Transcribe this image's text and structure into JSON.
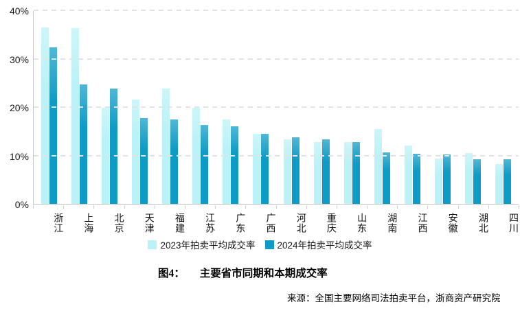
{
  "colors": {
    "series_2023": "#baf2f7",
    "series_2024": "#0e9bc5",
    "grid": "#e3e3e3",
    "axis": "#c9c9c9",
    "text": "#1a1a1a"
  },
  "chart_data": {
    "type": "bar",
    "categories": [
      "浙江",
      "上海",
      "北京",
      "天津",
      "福建",
      "江苏",
      "广东",
      "广西",
      "河北",
      "重庆",
      "山东",
      "湖南",
      "江西",
      "安徽",
      "湖北",
      "四川"
    ],
    "series": [
      {
        "name": "2023年拍卖平均成交率",
        "color": "#baf2f7",
        "values": [
          36.4,
          36.3,
          19.8,
          21.5,
          23.8,
          19.9,
          17.5,
          14.5,
          13.3,
          12.8,
          12.8,
          15.5,
          12.0,
          9.3,
          10.5,
          8.3
        ]
      },
      {
        "name": "2024年拍卖平均成交率",
        "color": "#0e9bc5",
        "values": [
          32.3,
          24.7,
          23.9,
          17.8,
          17.5,
          16.3,
          16.1,
          14.4,
          13.8,
          13.4,
          12.8,
          10.6,
          10.3,
          10.2,
          9.2,
          9.2
        ]
      }
    ],
    "ylim": [
      0,
      40
    ],
    "yticks": [
      "0%",
      "10%",
      "20%",
      "30%",
      "40%"
    ],
    "ytick_values": [
      0,
      10,
      20,
      30,
      40
    ],
    "grid": "horizontal-dashed",
    "legend_position": "bottom"
  },
  "caption": {
    "label": "图4：",
    "title": "主要省市同期和本期成交率"
  },
  "source": "来源：全国主要网络司法拍卖平台，浙商资产研究院"
}
